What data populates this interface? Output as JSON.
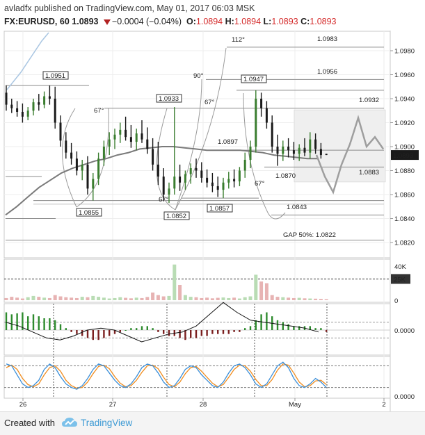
{
  "header": {
    "author": "avladfx",
    "published_text": "published on TradingView.com, May 01, 2017 06:03 MSK",
    "symbol_interval": "FX:EURUSD, 60",
    "last_price": "1.0893",
    "change": "−0.0004 (−0.04%)",
    "o_label": "O:",
    "o_value": "1.0894",
    "h_label": "H:",
    "h_value": "1.0894",
    "l_label": "L:",
    "l_value": "1.0893",
    "c_label": "C:",
    "c_value": "1.0893"
  },
  "footer": {
    "created_with": "Created with",
    "brand": "TradingView"
  },
  "colors": {
    "up": "#3a7d2f",
    "down": "#5c1f1f",
    "projection": "#9e9e9e",
    "ma": "#7a7a7a",
    "macd_pos": "#2e8b2e",
    "macd_neg": "#7b2020",
    "stoch_k": "#3b8fd9",
    "stoch_d": "#f08c1e"
  },
  "chart_data": [
    {
      "type": "candlestick",
      "title": "FX:EURUSD, 60",
      "x_tick_labels": [
        "26",
        "27",
        "28",
        "May",
        "2"
      ],
      "y_ticks": [
        "1.0980",
        "1.0960",
        "1.0940",
        "1.0920",
        "1.0900",
        "1.0880",
        "1.0860",
        "1.0840",
        "1.0820"
      ],
      "ylim": [
        1.081,
        1.099
      ],
      "current_price_label": "1.0893",
      "candles": [
        [
          1.0945,
          1.0951,
          1.093,
          1.0935
        ],
        [
          1.0935,
          1.094,
          1.0928,
          1.0932
        ],
        [
          1.0932,
          1.0938,
          1.0925,
          1.0929
        ],
        [
          1.0929,
          1.0936,
          1.092,
          1.0925
        ],
        [
          1.0925,
          1.0933,
          1.0922,
          1.093
        ],
        [
          1.093,
          1.094,
          1.0926,
          1.0937
        ],
        [
          1.0937,
          1.0944,
          1.093,
          1.0935
        ],
        [
          1.0935,
          1.0946,
          1.0932,
          1.0942
        ],
        [
          1.0942,
          1.0951,
          1.0935,
          1.094
        ],
        [
          1.094,
          1.095,
          1.0915,
          1.092
        ],
        [
          1.092,
          1.0926,
          1.09,
          1.0905
        ],
        [
          1.0905,
          1.0912,
          1.089,
          1.0895
        ],
        [
          1.0895,
          1.0903,
          1.0885,
          1.089
        ],
        [
          1.089,
          1.0896,
          1.0876,
          1.088
        ],
        [
          1.088,
          1.0889,
          1.0872,
          1.0885
        ],
        [
          1.0885,
          1.0892,
          1.086,
          1.0865
        ],
        [
          1.0865,
          1.0878,
          1.0855,
          1.0873
        ],
        [
          1.0873,
          1.0895,
          1.0868,
          1.089
        ],
        [
          1.089,
          1.0905,
          1.0884,
          1.09
        ],
        [
          1.09,
          1.0912,
          1.0893,
          1.0906
        ],
        [
          1.0906,
          1.0915,
          1.0898,
          1.091
        ],
        [
          1.091,
          1.092,
          1.0903,
          1.0914
        ],
        [
          1.0914,
          1.0925,
          1.0905,
          1.0908
        ],
        [
          1.0908,
          1.0918,
          1.0899,
          1.0904
        ],
        [
          1.0904,
          1.0915,
          1.0897,
          1.0911
        ],
        [
          1.0911,
          1.0922,
          1.0903,
          1.0906
        ],
        [
          1.0906,
          1.0916,
          1.0894,
          1.0898
        ],
        [
          1.0898,
          1.0907,
          1.088,
          1.0885
        ],
        [
          1.0885,
          1.0904,
          1.0868,
          1.0875
        ],
        [
          1.0875,
          1.0882,
          1.0855,
          1.086
        ],
        [
          1.086,
          1.087,
          1.0853,
          1.0865
        ],
        [
          1.0865,
          1.0933,
          1.086,
          1.0875
        ],
        [
          1.0875,
          1.0885,
          1.0863,
          1.087
        ],
        [
          1.087,
          1.088,
          1.0864,
          1.0877
        ],
        [
          1.0877,
          1.0886,
          1.0869,
          1.0882
        ],
        [
          1.0882,
          1.089,
          1.0874,
          1.088
        ],
        [
          1.088,
          1.0887,
          1.087,
          1.0874
        ],
        [
          1.0874,
          1.0881,
          1.0866,
          1.087
        ],
        [
          1.087,
          1.0878,
          1.0862,
          1.0867
        ],
        [
          1.0867,
          1.0875,
          1.0858,
          1.0864
        ],
        [
          1.0864,
          1.0874,
          1.0857,
          1.087
        ],
        [
          1.087,
          1.0879,
          1.0865,
          1.0873
        ],
        [
          1.0873,
          1.0881,
          1.0866,
          1.0871
        ],
        [
          1.0871,
          1.0883,
          1.0867,
          1.088
        ],
        [
          1.088,
          1.0895,
          1.0874,
          1.0889
        ],
        [
          1.0889,
          1.0905,
          1.0882,
          1.09
        ],
        [
          1.09,
          1.0947,
          1.0895,
          1.094
        ],
        [
          1.094,
          1.0945,
          1.0925,
          1.0932
        ],
        [
          1.0932,
          1.0938,
          1.0915,
          1.092
        ],
        [
          1.092,
          1.0926,
          1.0895,
          1.09
        ],
        [
          1.09,
          1.091,
          1.0884,
          1.0894
        ],
        [
          1.0894,
          1.0905,
          1.0888,
          1.09
        ],
        [
          1.09,
          1.0907,
          1.0891,
          1.0897
        ],
        [
          1.0897,
          1.0904,
          1.0889,
          1.0894
        ],
        [
          1.0894,
          1.0902,
          1.0888,
          1.0899
        ],
        [
          1.0899,
          1.0907,
          1.0892,
          1.0895
        ],
        [
          1.0895,
          1.0912,
          1.089,
          1.0906
        ],
        [
          1.0906,
          1.0911,
          1.0894,
          1.0898
        ],
        [
          1.0898,
          1.0903,
          1.089,
          1.0893
        ],
        [
          1.0894,
          1.0894,
          1.0893,
          1.0893
        ]
      ],
      "ma_series": [
        1.0843,
        1.085,
        1.0858,
        1.0866,
        1.0872,
        1.0878,
        1.0882,
        1.0885,
        1.0888,
        1.089,
        1.0893,
        1.0895,
        1.0898,
        1.0899,
        1.09,
        1.09,
        1.0899,
        1.0898,
        1.0897,
        1.0897,
        1.0897,
        1.0897,
        1.0896,
        1.0895,
        1.0893,
        1.0892,
        1.0891,
        1.089,
        1.089
      ],
      "projection": [
        1.0893,
        1.0875,
        1.0862,
        1.0885,
        1.0902,
        1.0924,
        1.09,
        1.0908,
        1.0898
      ],
      "annotations": [
        "1.0951",
        "1.0855",
        "1.0933",
        "1.0852",
        "1.0947",
        "1.0857",
        "1.0897",
        "1.0870",
        "1.0983",
        "1.0956",
        "1.0932",
        "1.0883",
        "1.0843",
        "GAP 50%: 1.0822",
        "112°",
        "90°",
        "67°",
        "67°",
        "67°",
        "67°"
      ]
    },
    {
      "type": "bar",
      "name": "volume",
      "y_ticks": [
        "40K",
        "25K",
        "0"
      ],
      "ylim": [
        0,
        45000
      ],
      "values": [
        2500,
        4000,
        3000,
        2000,
        3500,
        5000,
        4000,
        3000,
        2500,
        6000,
        4500,
        3500,
        3000,
        2500,
        4000,
        3500,
        5000,
        4000,
        3000,
        2000,
        2500,
        3500,
        2800,
        2200,
        3000,
        2500,
        3800,
        9000,
        6000,
        4500,
        5000,
        42000,
        18000,
        6000,
        4000,
        3500,
        2500,
        3000,
        2200,
        2800,
        3200,
        2500,
        3000,
        2000,
        3500,
        4500,
        30000,
        22000,
        20000,
        6000,
        4000,
        3500,
        3000,
        2500,
        2800,
        2200,
        2000,
        1800,
        1500,
        1200
      ]
    },
    {
      "type": "bar",
      "name": "macd",
      "y_ticks": [
        "0.0000"
      ],
      "ylim": [
        -0.0012,
        0.0012
      ],
      "values": [
        0.0009,
        0.0008,
        0.00085,
        0.0009,
        0.0007,
        0.0008,
        0.0007,
        0.0006,
        0.0006,
        0.0005,
        0.0003,
        0.0001,
        -0.0001,
        -0.0002,
        -0.0003,
        -0.0004,
        -0.0005,
        -0.0005,
        -0.0004,
        -0.0003,
        -0.0002,
        -0.0001,
        0.0,
        0.0001,
        0.0001,
        0.0002,
        0.0002,
        0.0001,
        -0.0001,
        -0.0002,
        -0.0003,
        -0.0003,
        -0.0004,
        -0.0005,
        -0.0004,
        -0.0004,
        -0.0003,
        -0.0003,
        -0.0002,
        -0.0002,
        -0.0002,
        -0.0002,
        -0.0001,
        -0.0001,
        0.0001,
        0.0002,
        0.0005,
        0.0008,
        0.0009,
        0.0007,
        0.0005,
        0.0004,
        0.0003,
        0.0002,
        0.0002,
        0.0002,
        0.0002,
        0.0001,
        0.0001,
        -0.0001
      ],
      "signal": [
        0.0004,
        0.0002,
        -0.0001,
        -0.0004,
        -0.0005,
        -0.0003,
        0.0,
        0.0001,
        0.0,
        -0.0003,
        -0.0006,
        -0.0004,
        -0.0002,
        -0.0001,
        0.0002,
        0.0008,
        0.0014,
        0.0009,
        0.0005,
        0.0004,
        0.0003,
        0.0002,
        0.0001,
        -0.0001
      ]
    },
    {
      "type": "line",
      "name": "stochastic",
      "y_ticks": [
        "0.0000"
      ],
      "k": [
        85,
        80,
        55,
        30,
        20,
        25,
        40,
        70,
        85,
        75,
        50,
        30,
        20,
        15,
        25,
        45,
        70,
        85,
        80,
        60,
        40,
        25,
        20,
        30,
        50,
        75,
        85,
        80,
        60,
        35,
        20,
        25,
        45,
        70,
        80,
        75,
        55,
        40,
        25,
        20,
        35,
        60,
        80,
        85,
        75,
        55,
        30,
        20,
        30,
        55,
        80,
        90,
        75,
        45,
        25,
        20,
        30,
        45,
        35,
        20
      ],
      "d": [
        75,
        82,
        70,
        45,
        28,
        22,
        30,
        55,
        75,
        80,
        65,
        40,
        25,
        18,
        20,
        35,
        58,
        78,
        82,
        72,
        50,
        32,
        22,
        25,
        40,
        62,
        80,
        82,
        72,
        48,
        28,
        22,
        35,
        58,
        75,
        78,
        65,
        48,
        32,
        22,
        28,
        48,
        70,
        82,
        80,
        65,
        42,
        25,
        25,
        42,
        68,
        85,
        82,
        60,
        35,
        22,
        25,
        38,
        40,
        28
      ]
    }
  ]
}
